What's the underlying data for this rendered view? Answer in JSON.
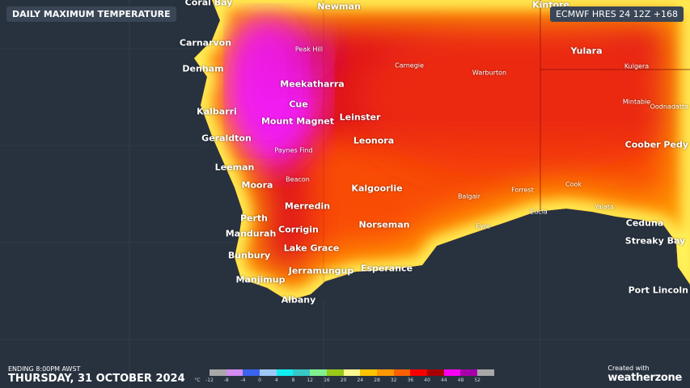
{
  "header": {
    "title": "DAILY MAXIMUM TEMPERATURE",
    "model": "ECMWF HRES 24 12Z +168"
  },
  "footer": {
    "ending": "ENDING 8:00PM AWST",
    "date": "THURSDAY, 31 OCTOBER 2024",
    "credit_line": "Created with",
    "brand": "weatherzone"
  },
  "legend": {
    "unit": "°C",
    "ticks": [
      "-12",
      "-8",
      "-4",
      "0",
      "4",
      "8",
      "12",
      "16",
      "20",
      "24",
      "28",
      "32",
      "36",
      "40",
      "44",
      "48",
      "52"
    ],
    "colors": [
      "#a8a8a8",
      "#d38cf0",
      "#3a64f0",
      "#9dc8f8",
      "#12eef0",
      "#36c8c8",
      "#80f090",
      "#98c818",
      "#fcf890",
      "#fcc400",
      "#fc9800",
      "#fc6000",
      "#f80000",
      "#a80000",
      "#f800f0",
      "#a800a8",
      "#a8a8a8"
    ]
  },
  "map": {
    "colors": {
      "ocean": "#28323f",
      "hot_red": "#e8141c",
      "extreme_magenta": "#f01ef0",
      "coast_yellow": "#fff25a",
      "orange": "#ff7a00"
    },
    "cities": [
      {
        "name": "Coral Bay"
      },
      {
        "name": "Newman"
      },
      {
        "name": "Kintore"
      },
      {
        "name": "Carnarvon"
      },
      {
        "name": "Peak Hill"
      },
      {
        "name": "Carnegie"
      },
      {
        "name": "Warburton"
      },
      {
        "name": "Yulara"
      },
      {
        "name": "Kulgera"
      },
      {
        "name": "Denham"
      },
      {
        "name": "Meekatharra"
      },
      {
        "name": "Cue"
      },
      {
        "name": "Kalbarri"
      },
      {
        "name": "Mintabie"
      },
      {
        "name": "Oodnadatta"
      },
      {
        "name": "Leinster"
      },
      {
        "name": "Mount Magnet"
      },
      {
        "name": "Geraldton"
      },
      {
        "name": "Leonora"
      },
      {
        "name": "Coober Pedy"
      },
      {
        "name": "Paynes Find"
      },
      {
        "name": "Leeman"
      },
      {
        "name": "Beacon"
      },
      {
        "name": "Moora"
      },
      {
        "name": "Kalgoorlie"
      },
      {
        "name": "Cook"
      },
      {
        "name": "Forrest"
      },
      {
        "name": "Balgair"
      },
      {
        "name": "Eucla"
      },
      {
        "name": "Yalata"
      },
      {
        "name": "Merredin"
      },
      {
        "name": "Perth"
      },
      {
        "name": "Eyre"
      },
      {
        "name": "Ceduna"
      },
      {
        "name": "Norseman"
      },
      {
        "name": "Corrigin"
      },
      {
        "name": "Mandurah"
      },
      {
        "name": "Streaky Bay"
      },
      {
        "name": "Lake Grace"
      },
      {
        "name": "Bunbury"
      },
      {
        "name": "Jerramungup"
      },
      {
        "name": "Esperance"
      },
      {
        "name": "Manjimup"
      },
      {
        "name": "Port Lincoln"
      },
      {
        "name": "Albany"
      }
    ]
  }
}
